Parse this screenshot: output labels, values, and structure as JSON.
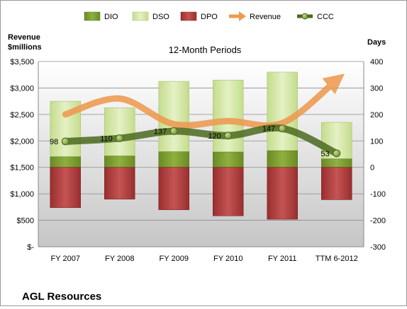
{
  "chart_data": {
    "type": "bar",
    "title": "12-Month Periods",
    "company": "AGL Resources",
    "categories": [
      "FY 2007",
      "FY 2008",
      "FY 2009",
      "FY 2010",
      "FY 2011",
      "TTM 6-2012"
    ],
    "y_left": {
      "label_line1": "Revenue",
      "label_line2": "$millions",
      "lim": [
        0,
        3500
      ],
      "ticks": [
        0,
        500,
        1000,
        1500,
        2000,
        2500,
        3000,
        3500
      ],
      "tick_labels": [
        "$-",
        "$500",
        "$1,000",
        "$1,500",
        "$2,000",
        "$2,500",
        "$3,000",
        "$3,500"
      ]
    },
    "y_right": {
      "label": "Days",
      "lim": [
        -300,
        400
      ],
      "ticks": [
        -300,
        -200,
        -100,
        0,
        100,
        200,
        300,
        400
      ],
      "tick_labels": [
        "-300",
        "-200",
        "-100",
        "0",
        "100",
        "200",
        "300",
        "400"
      ]
    },
    "grid": true,
    "legend_position": "top",
    "legend": [
      {
        "key": "DIO",
        "label": "DIO"
      },
      {
        "key": "DSO",
        "label": "DSO"
      },
      {
        "key": "DPO",
        "label": "DPO"
      },
      {
        "key": "Revenue",
        "label": "Revenue"
      },
      {
        "key": "CCC",
        "label": "CCC"
      }
    ],
    "series": [
      {
        "name": "DIO",
        "axis": "right",
        "values": [
          40,
          43,
          59,
          58,
          63,
          32
        ]
      },
      {
        "name": "DSO",
        "axis": "right",
        "values": [
          250,
          225,
          325,
          330,
          360,
          170
        ]
      },
      {
        "name": "DPO",
        "axis": "right",
        "values": [
          -152,
          -120,
          -160,
          -183,
          -196,
          -122
        ]
      },
      {
        "name": "Revenue",
        "axis": "left",
        "values": [
          2500,
          2800,
          2317,
          2374,
          2338,
          3150
        ]
      },
      {
        "name": "CCC",
        "axis": "right",
        "values": [
          98,
          110,
          137,
          120,
          147,
          53
        ],
        "labels": [
          "98",
          "110",
          "137",
          "120",
          "147",
          "53"
        ]
      }
    ],
    "colors": {
      "DIO": "#7a9a2c",
      "DSO": "#d2e6a0",
      "DPO": "#ae3a3a",
      "Revenue": "#ee9a50",
      "CCC": "#4b6a20",
      "CCC_marker": "#8fb04a"
    }
  }
}
